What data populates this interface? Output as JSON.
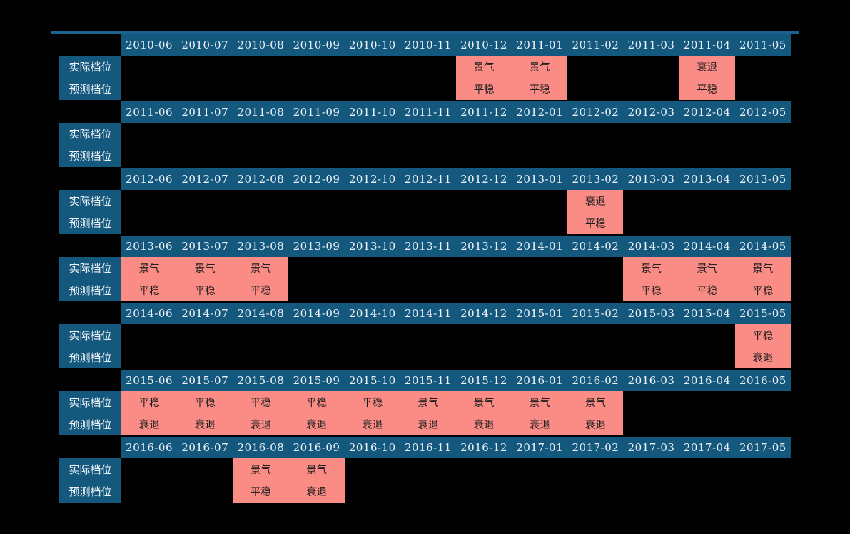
{
  "colors": {
    "background": "#000000",
    "header_bg": "#15587E",
    "top_rule": "#1A6391",
    "highlight_bg": "#FA8C85",
    "header_text": "#EEF3F8",
    "cell_text": "#1F1F1F"
  },
  "row_labels": {
    "actual": "实际档位",
    "predicted": "预测档位"
  },
  "sections": [
    {
      "months": [
        "2010-06",
        "2010-07",
        "2010-08",
        "2010-09",
        "2010-10",
        "2010-11",
        "2010-12",
        "2011-01",
        "2011-02",
        "2011-03",
        "2011-04",
        "2011-05"
      ],
      "highlights": {
        "2010-12": {
          "actual": "景气",
          "predicted": "平稳"
        },
        "2011-01": {
          "actual": "景气",
          "predicted": "平稳"
        },
        "2011-04": {
          "actual": "衰退",
          "predicted": "平稳"
        }
      }
    },
    {
      "months": [
        "2011-06",
        "2011-07",
        "2011-08",
        "2011-09",
        "2011-10",
        "2011-11",
        "2011-12",
        "2012-01",
        "2012-02",
        "2012-03",
        "2012-04",
        "2012-05"
      ],
      "highlights": {}
    },
    {
      "months": [
        "2012-06",
        "2012-07",
        "2012-08",
        "2012-09",
        "2012-10",
        "2012-11",
        "2012-12",
        "2013-01",
        "2013-02",
        "2013-03",
        "2013-04",
        "2013-05"
      ],
      "highlights": {
        "2013-02": {
          "actual": "衰退",
          "predicted": "平稳"
        }
      }
    },
    {
      "months": [
        "2013-06",
        "2013-07",
        "2013-08",
        "2013-09",
        "2013-10",
        "2013-11",
        "2013-12",
        "2014-01",
        "2014-02",
        "2014-03",
        "2014-04",
        "2014-05"
      ],
      "highlights": {
        "2013-06": {
          "actual": "景气",
          "predicted": "平稳"
        },
        "2013-07": {
          "actual": "景气",
          "predicted": "平稳"
        },
        "2013-08": {
          "actual": "景气",
          "predicted": "平稳"
        },
        "2014-03": {
          "actual": "景气",
          "predicted": "平稳"
        },
        "2014-04": {
          "actual": "景气",
          "predicted": "平稳"
        },
        "2014-05": {
          "actual": "景气",
          "predicted": "平稳"
        }
      }
    },
    {
      "months": [
        "2014-06",
        "2014-07",
        "2014-08",
        "2014-09",
        "2014-10",
        "2014-11",
        "2014-12",
        "2015-01",
        "2015-02",
        "2015-03",
        "2015-04",
        "2015-05"
      ],
      "highlights": {
        "2015-05": {
          "actual": "平稳",
          "predicted": "衰退"
        }
      }
    },
    {
      "months": [
        "2015-06",
        "2015-07",
        "2015-08",
        "2015-09",
        "2015-10",
        "2015-11",
        "2015-12",
        "2016-01",
        "2016-02",
        "2016-03",
        "2016-04",
        "2016-05"
      ],
      "highlights": {
        "2015-06": {
          "actual": "平稳",
          "predicted": "衰退"
        },
        "2015-07": {
          "actual": "平稳",
          "predicted": "衰退"
        },
        "2015-08": {
          "actual": "平稳",
          "predicted": "衰退"
        },
        "2015-09": {
          "actual": "平稳",
          "predicted": "衰退"
        },
        "2015-10": {
          "actual": "平稳",
          "predicted": "衰退"
        },
        "2015-11": {
          "actual": "景气",
          "predicted": "衰退"
        },
        "2015-12": {
          "actual": "景气",
          "predicted": "衰退"
        },
        "2016-01": {
          "actual": "景气",
          "predicted": "衰退"
        },
        "2016-02": {
          "actual": "景气",
          "predicted": "衰退"
        }
      }
    },
    {
      "months": [
        "2016-06",
        "2016-07",
        "2016-08",
        "2016-09",
        "2016-10",
        "2016-11",
        "2016-12",
        "2017-01",
        "2017-02",
        "2017-03",
        "2017-04",
        "2017-05"
      ],
      "highlights": {
        "2016-08": {
          "actual": "景气",
          "predicted": "平稳"
        },
        "2016-09": {
          "actual": "景气",
          "predicted": "衰退"
        }
      }
    }
  ],
  "chart_data": {
    "type": "table",
    "title": "",
    "row_labels": [
      "实际档位",
      "预测档位"
    ],
    "months_start": "2010-06",
    "months_end": "2017-05",
    "value_vocabulary": [
      "景气",
      "平稳",
      "衰退"
    ],
    "highlighted_cells": [
      {
        "month": "2010-12",
        "actual": "景气",
        "predicted": "平稳"
      },
      {
        "month": "2011-01",
        "actual": "景气",
        "predicted": "平稳"
      },
      {
        "month": "2011-04",
        "actual": "衰退",
        "predicted": "平稳"
      },
      {
        "month": "2013-02",
        "actual": "衰退",
        "predicted": "平稳"
      },
      {
        "month": "2013-06",
        "actual": "景气",
        "predicted": "平稳"
      },
      {
        "month": "2013-07",
        "actual": "景气",
        "predicted": "平稳"
      },
      {
        "month": "2013-08",
        "actual": "景气",
        "predicted": "平稳"
      },
      {
        "month": "2014-03",
        "actual": "景气",
        "predicted": "平稳"
      },
      {
        "month": "2014-04",
        "actual": "景气",
        "predicted": "平稳"
      },
      {
        "month": "2014-05",
        "actual": "景气",
        "predicted": "平稳"
      },
      {
        "month": "2015-05",
        "actual": "平稳",
        "predicted": "衰退"
      },
      {
        "month": "2015-06",
        "actual": "平稳",
        "predicted": "衰退"
      },
      {
        "month": "2015-07",
        "actual": "平稳",
        "predicted": "衰退"
      },
      {
        "month": "2015-08",
        "actual": "平稳",
        "predicted": "衰退"
      },
      {
        "month": "2015-09",
        "actual": "平稳",
        "predicted": "衰退"
      },
      {
        "month": "2015-10",
        "actual": "平稳",
        "predicted": "衰退"
      },
      {
        "month": "2015-11",
        "actual": "景气",
        "predicted": "衰退"
      },
      {
        "month": "2015-12",
        "actual": "景气",
        "predicted": "衰退"
      },
      {
        "month": "2016-01",
        "actual": "景气",
        "predicted": "衰退"
      },
      {
        "month": "2016-02",
        "actual": "景气",
        "predicted": "衰退"
      },
      {
        "month": "2016-08",
        "actual": "景气",
        "predicted": "平稳"
      },
      {
        "month": "2016-09",
        "actual": "景气",
        "predicted": "衰退"
      }
    ]
  }
}
